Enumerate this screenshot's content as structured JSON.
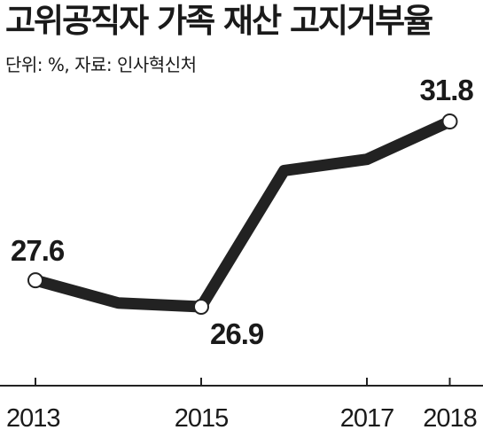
{
  "title": "고위공직자 가족 재산 고지거부율",
  "subtitle": "단위: %, 자료: 인사혁신처",
  "chart_data": {
    "type": "line",
    "title": "고위공직자 가족 재산 고지거부율",
    "subtitle": "단위: %, 자료: 인사혁신처",
    "x": [
      2013,
      2014,
      2015,
      2016,
      2017,
      2018
    ],
    "y": [
      27.6,
      27.0,
      26.9,
      30.5,
      30.8,
      31.8
    ],
    "tick_labels": [
      "2013",
      "2015",
      "2017",
      "2018"
    ],
    "data_labels": [
      {
        "index": 0,
        "text": "27.6"
      },
      {
        "index": 2,
        "text": "26.9"
      },
      {
        "index": 5,
        "text": "31.8"
      }
    ],
    "marker_indices": [
      0,
      2,
      5
    ],
    "grid": false,
    "legend": "none",
    "line_color": "#222222"
  }
}
